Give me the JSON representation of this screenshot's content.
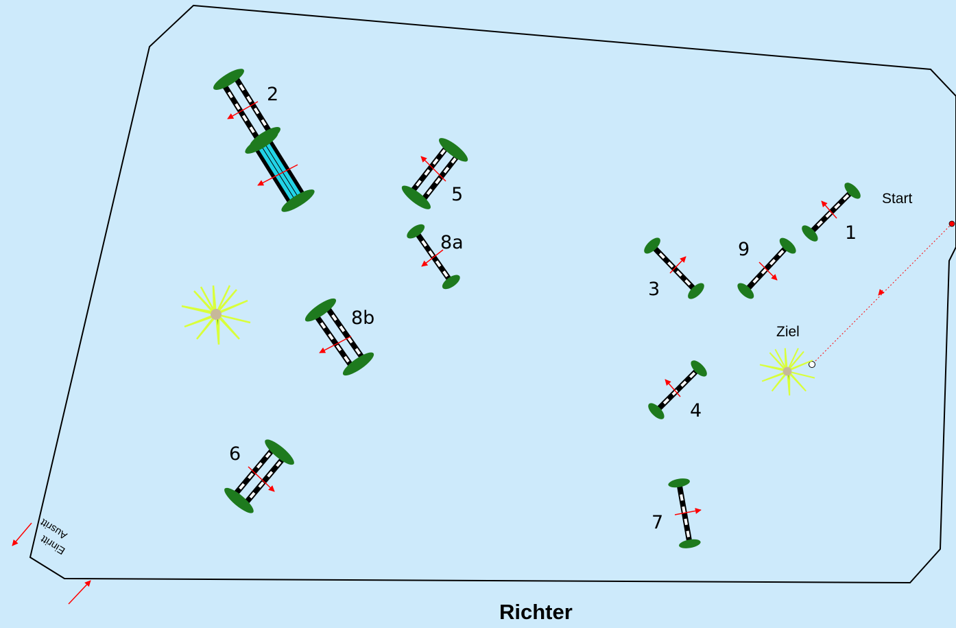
{
  "colors": {
    "background": "#cdeafb",
    "arena_fill": "#cdeafb",
    "arena_border": "#000000",
    "bush": "#1e7a1e",
    "arrow": "#ff0000",
    "water": "#22d3e6",
    "plant_light": "#d9ff3a",
    "plant_dark": "#0f7a0f"
  },
  "labels": {
    "start": "Start",
    "ziel": "Ziel",
    "richter": "Richter",
    "einritt": "Einritt",
    "ausritt": "Ausritt"
  },
  "obstacles": [
    {
      "label": "1",
      "type": "vertical",
      "arrow": "up-left"
    },
    {
      "label": "2",
      "type": "oxer",
      "arrow": "down-left"
    },
    {
      "label": "3",
      "type": "vertical",
      "arrow": "up-right"
    },
    {
      "label": "4",
      "type": "vertical",
      "arrow": "up-left"
    },
    {
      "label": "5",
      "type": "oxer",
      "arrow": "up-left"
    },
    {
      "label": "6",
      "type": "oxer",
      "arrow": "down-right"
    },
    {
      "label": "7",
      "type": "vertical",
      "arrow": "right"
    },
    {
      "label": "8a",
      "type": "vertical",
      "arrow": "down-left"
    },
    {
      "label": "8b",
      "type": "oxer",
      "arrow": "down-left"
    },
    {
      "label": "9",
      "type": "vertical",
      "arrow": "down-right"
    }
  ],
  "water_jump": {
    "type": "water",
    "arrow": "down-left"
  },
  "decorations": {
    "icons": [
      "palm-plant-icon",
      "palm-plant-icon"
    ]
  }
}
